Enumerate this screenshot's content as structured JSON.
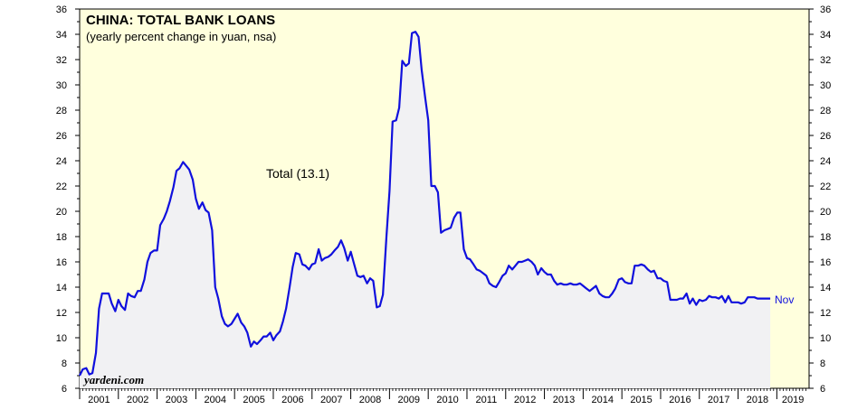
{
  "chart_data": {
    "type": "area",
    "title": "CHINA: TOTAL BANK LOANS",
    "subtitle": "(yearly percent change in yuan, nsa)",
    "annotation": "Total (13.1)",
    "last_label": "Nov",
    "source": "yardeni.com",
    "xlabel": "",
    "ylabel": "",
    "grid": false,
    "ylim": [
      6,
      36
    ],
    "y_ticks": [
      6,
      8,
      10,
      12,
      14,
      16,
      18,
      20,
      22,
      24,
      26,
      28,
      30,
      32,
      34,
      36
    ],
    "x_tick_labels": [
      "2001",
      "2002",
      "2003",
      "2004",
      "2005",
      "2006",
      "2007",
      "2008",
      "2009",
      "2010",
      "2011",
      "2012",
      "2013",
      "2014",
      "2015",
      "2016",
      "2017",
      "2018",
      "2019"
    ],
    "xlim": [
      2001.0,
      2019.833
    ],
    "colors": {
      "line": "#1010dd",
      "fill": "#f1f1f3",
      "background": "#ffffdd"
    },
    "series": [
      {
        "x": [
          2001.0,
          2001.08,
          2001.17,
          2001.25,
          2001.33,
          2001.42,
          2001.5,
          2001.58,
          2001.67,
          2001.75,
          2001.83,
          2001.92,
          2002.0,
          2002.08,
          2002.17,
          2002.25,
          2002.33,
          2002.42,
          2002.5,
          2002.58,
          2002.67,
          2002.75,
          2002.83,
          2002.92,
          2003.0,
          2003.08,
          2003.17,
          2003.25,
          2003.33,
          2003.42,
          2003.5,
          2003.58,
          2003.67,
          2003.75,
          2003.83,
          2003.92,
          2004.0,
          2004.08,
          2004.17,
          2004.25,
          2004.33,
          2004.42,
          2004.5,
          2004.58,
          2004.67,
          2004.75,
          2004.83,
          2004.92,
          2005.0,
          2005.08,
          2005.17,
          2005.25,
          2005.33,
          2005.42,
          2005.5,
          2005.58,
          2005.67,
          2005.75,
          2005.83,
          2005.92,
          2006.0,
          2006.08,
          2006.17,
          2006.25,
          2006.33,
          2006.42,
          2006.5,
          2006.58,
          2006.67,
          2006.75,
          2006.83,
          2006.92,
          2007.0,
          2007.08,
          2007.17,
          2007.25,
          2007.33,
          2007.42,
          2007.5,
          2007.58,
          2007.67,
          2007.75,
          2007.83,
          2007.92,
          2008.0,
          2008.08,
          2008.17,
          2008.25,
          2008.33,
          2008.42,
          2008.5,
          2008.58,
          2008.67,
          2008.75,
          2008.83,
          2008.92,
          2009.0,
          2009.08,
          2009.17,
          2009.25,
          2009.33,
          2009.42,
          2009.5,
          2009.58,
          2009.67,
          2009.75,
          2009.83,
          2009.92,
          2010.0,
          2010.08,
          2010.17,
          2010.25,
          2010.33,
          2010.42,
          2010.5,
          2010.58,
          2010.67,
          2010.75,
          2010.83,
          2010.92,
          2011.0,
          2011.08,
          2011.17,
          2011.25,
          2011.33,
          2011.42,
          2011.5,
          2011.58,
          2011.67,
          2011.75,
          2011.83,
          2011.92,
          2012.0,
          2012.08,
          2012.17,
          2012.25,
          2012.33,
          2012.42,
          2012.5,
          2012.58,
          2012.67,
          2012.75,
          2012.83,
          2012.92,
          2013.0,
          2013.08,
          2013.17,
          2013.25,
          2013.33,
          2013.42,
          2013.5,
          2013.58,
          2013.67,
          2013.75,
          2013.83,
          2013.92,
          2014.0,
          2014.08,
          2014.17,
          2014.25,
          2014.33,
          2014.42,
          2014.5,
          2014.58,
          2014.67,
          2014.75,
          2014.83,
          2014.92,
          2015.0,
          2015.08,
          2015.17,
          2015.25,
          2015.33,
          2015.42,
          2015.5,
          2015.58,
          2015.67,
          2015.75,
          2015.83,
          2015.92,
          2016.0,
          2016.08,
          2016.17,
          2016.25,
          2016.33,
          2016.42,
          2016.5,
          2016.58,
          2016.67,
          2016.75,
          2016.83,
          2016.92,
          2017.0,
          2017.08,
          2017.17,
          2017.25,
          2017.33,
          2017.42,
          2017.5,
          2017.58,
          2017.67,
          2017.75,
          2017.83,
          2017.92,
          2018.0,
          2018.08,
          2018.17,
          2018.25,
          2018.33,
          2018.42,
          2018.5,
          2018.58,
          2018.67,
          2018.75,
          2018.83
        ],
        "values": [
          7.0,
          7.5,
          7.6,
          7.1,
          7.2,
          8.8,
          12.3,
          13.5,
          13.5,
          13.5,
          12.7,
          12.1,
          13.0,
          12.5,
          12.2,
          13.5,
          13.3,
          13.2,
          13.7,
          13.7,
          14.6,
          16.0,
          16.7,
          16.9,
          16.9,
          18.9,
          19.4,
          20.0,
          20.8,
          21.9,
          23.2,
          23.4,
          23.9,
          23.6,
          23.3,
          22.5,
          21.0,
          20.2,
          20.7,
          20.1,
          19.9,
          18.5,
          14.0,
          13.1,
          11.7,
          11.1,
          10.9,
          11.1,
          11.5,
          11.9,
          11.2,
          10.9,
          10.4,
          9.3,
          9.7,
          9.5,
          9.8,
          10.1,
          10.1,
          10.4,
          9.8,
          10.2,
          10.5,
          11.3,
          12.3,
          14.0,
          15.6,
          16.7,
          16.6,
          15.8,
          15.7,
          15.4,
          15.8,
          15.9,
          17.0,
          16.1,
          16.3,
          16.4,
          16.6,
          16.9,
          17.2,
          17.7,
          17.1,
          16.1,
          16.8,
          15.9,
          14.9,
          14.8,
          14.9,
          14.3,
          14.7,
          14.5,
          12.4,
          12.5,
          13.4,
          18.0,
          21.6,
          27.1,
          27.2,
          28.2,
          31.9,
          31.5,
          31.7,
          34.1,
          34.2,
          33.8,
          31.2,
          29.0,
          27.2,
          22.0,
          22.0,
          21.5,
          18.3,
          18.5,
          18.6,
          18.7,
          19.5,
          19.9,
          19.9,
          17.0,
          16.3,
          16.2,
          15.8,
          15.4,
          15.3,
          15.1,
          14.9,
          14.3,
          14.1,
          14.0,
          14.4,
          14.9,
          15.1,
          15.7,
          15.4,
          15.7,
          16.0,
          16.0,
          16.1,
          16.2,
          16.0,
          15.7,
          15.0,
          15.5,
          15.2,
          15.0,
          15.0,
          14.5,
          14.2,
          14.3,
          14.2,
          14.2,
          14.3,
          14.2,
          14.2,
          14.3,
          14.1,
          13.9,
          13.7,
          13.9,
          14.1,
          13.5,
          13.3,
          13.2,
          13.2,
          13.5,
          13.9,
          14.6,
          14.7,
          14.4,
          14.3,
          14.3,
          15.7,
          15.7,
          15.8,
          15.7,
          15.4,
          15.2,
          15.3,
          14.7,
          14.7,
          14.5,
          14.4,
          13.0,
          13.0,
          13.0,
          13.1,
          13.1,
          13.5,
          12.7,
          13.1,
          12.6,
          13.0,
          12.9,
          13.0,
          13.3,
          13.2,
          13.2,
          13.1,
          13.3,
          12.8,
          13.3,
          12.8,
          12.8,
          12.8,
          12.7,
          12.8,
          13.2,
          13.2,
          13.2,
          13.1,
          13.1,
          13.1,
          13.1,
          13.1
        ]
      }
    ]
  }
}
